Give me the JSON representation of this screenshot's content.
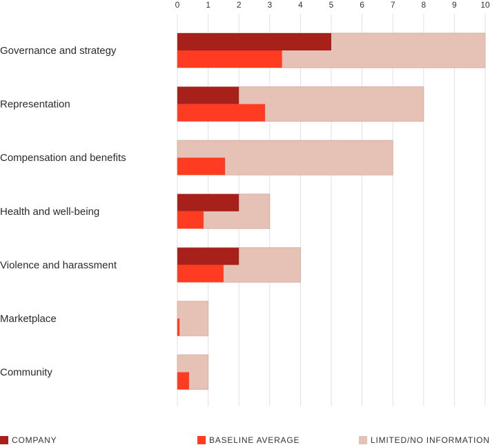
{
  "chart_data": {
    "type": "bar",
    "orientation": "horizontal",
    "xlim": [
      0,
      10
    ],
    "ticks": [
      0,
      1,
      2,
      3,
      4,
      5,
      6,
      7,
      8,
      9,
      10
    ],
    "grid": true,
    "categories": [
      "Governance and strategy",
      "Representation",
      "Compensation and benefits",
      "Health and well-being",
      "Violence and harassment",
      "Marketplace",
      "Community"
    ],
    "series": [
      {
        "name": "COMPANY",
        "values": [
          5,
          2,
          0,
          2,
          2,
          0,
          0
        ]
      },
      {
        "name": "BASELINE AVERAGE",
        "values": [
          3.4,
          2.85,
          1.55,
          0.85,
          1.5,
          0.07,
          0.38
        ]
      },
      {
        "name": "LIMITED/NO INFORMATION",
        "values": [
          10,
          8,
          7,
          3,
          4,
          1,
          1
        ]
      }
    ],
    "legend_position": "bottom",
    "colors": {
      "company": "#A8201A",
      "baseline": "#FF3B22",
      "limited": "#E6C2B6",
      "limited_edge": "#D9AFA2",
      "grid": "#E0E0E0"
    }
  },
  "legend": {
    "company_label": "COMPANY",
    "baseline_label": "BASELINE AVERAGE",
    "limited_label": "LIMITED/NO INFORMATION"
  }
}
